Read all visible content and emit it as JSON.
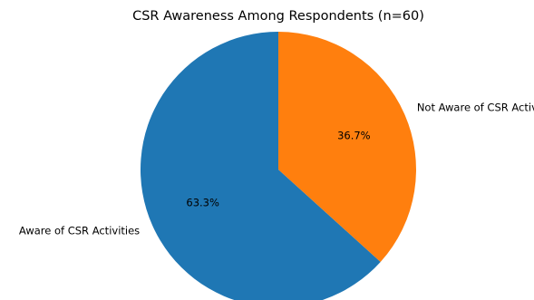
{
  "chart_data": {
    "type": "pie",
    "title": "CSR Awareness Among Respondents (n=60)",
    "categories": [
      "Aware of CSR Activities",
      "Not Aware of CSR Activities"
    ],
    "values": [
      63.3,
      36.7
    ],
    "data_labels": [
      "63.3%",
      "36.7%"
    ],
    "colors": [
      "#1f77b4",
      "#ff7f0e"
    ],
    "start_angle_deg": 90,
    "direction": "counterclockwise",
    "legend": "none"
  }
}
